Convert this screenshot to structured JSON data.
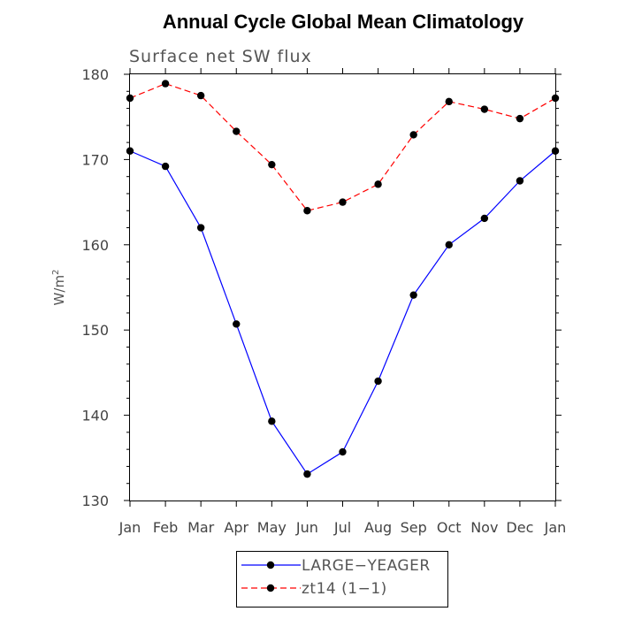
{
  "chart_data": {
    "type": "line",
    "title": "Annual Cycle Global Mean Climatology",
    "subtitle": "Surface net SW flux",
    "ylabel": "W/m",
    "ylabel_sup": "2",
    "ylim": [
      130,
      180
    ],
    "yticks": [
      130,
      140,
      150,
      160,
      170,
      180
    ],
    "categories": [
      "Jan",
      "Feb",
      "Mar",
      "Apr",
      "May",
      "Jun",
      "Jul",
      "Aug",
      "Sep",
      "Oct",
      "Nov",
      "Dec",
      "Jan"
    ],
    "series": [
      {
        "name": "LARGE−YEAGER",
        "color": "#0000ff",
        "dash": "solid",
        "values": [
          171.0,
          169.2,
          162.0,
          150.7,
          139.3,
          133.1,
          135.7,
          144.0,
          154.1,
          160.0,
          163.1,
          167.5,
          171.0
        ]
      },
      {
        "name": "zt14 (1−1)",
        "color": "#ff0000",
        "dash": "dashed",
        "values": [
          177.2,
          178.9,
          177.5,
          173.3,
          169.4,
          164.0,
          165.0,
          167.1,
          172.9,
          176.8,
          175.9,
          174.8,
          177.2
        ]
      }
    ],
    "grid": false,
    "legend_position": "bottom"
  }
}
